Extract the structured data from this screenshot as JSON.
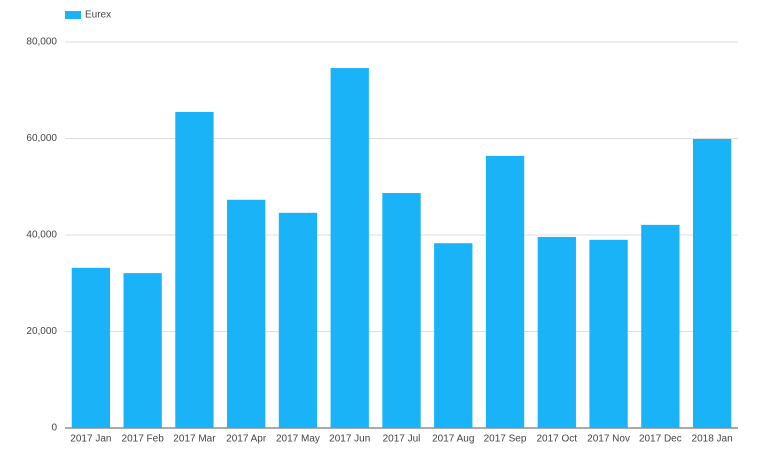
{
  "chart_data": {
    "type": "bar",
    "categories": [
      "2017 Jan",
      "2017 Feb",
      "2017 Mar",
      "2017 Apr",
      "2017 May",
      "2017 Jun",
      "2017 Jul",
      "2017 Aug",
      "2017 Sep",
      "2017 Oct",
      "2017 Nov",
      "2017 Dec",
      "2018 Jan"
    ],
    "series": [
      {
        "name": "Eurex",
        "color": "#1ab3f7",
        "values": [
          33200,
          32100,
          65500,
          47300,
          44600,
          74600,
          48700,
          38300,
          56400,
          39600,
          39000,
          42100,
          59900
        ]
      }
    ],
    "ylim": [
      0,
      80000
    ],
    "yticks": [
      0,
      {
        "value": 20000,
        "label": "20,000"
      },
      {
        "value": 40000,
        "label": "40,000"
      },
      {
        "value": 60000,
        "label": "60,000"
      },
      {
        "value": 80000,
        "label": "80,000"
      }
    ],
    "grid": true,
    "legend": "top-left"
  }
}
